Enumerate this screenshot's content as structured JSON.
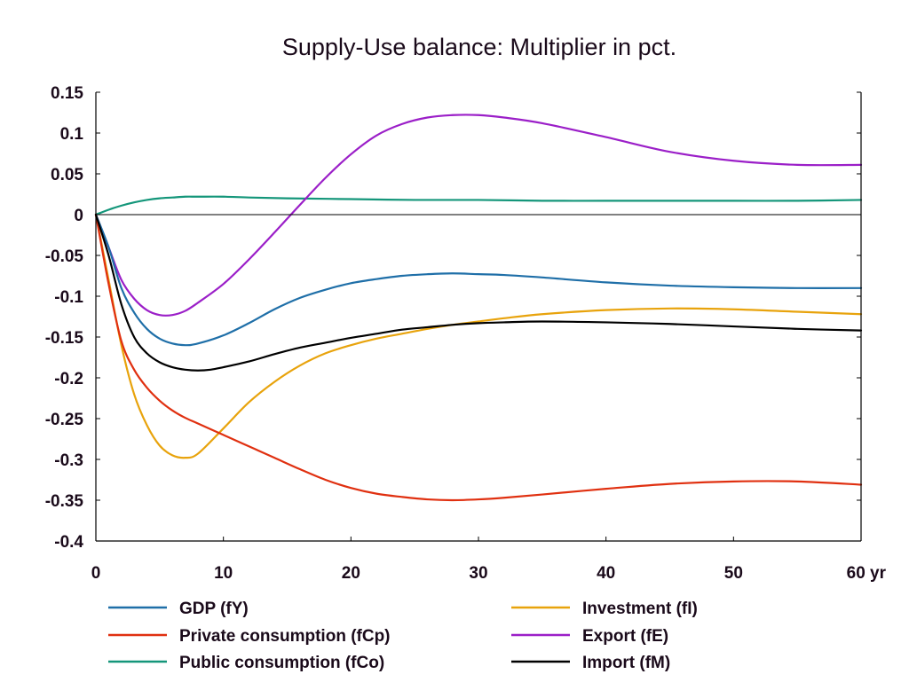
{
  "chart_data": {
    "type": "line",
    "title": "Supply-Use balance: Multiplier in pct.",
    "xlabel": "",
    "ylabel": "",
    "x_unit_label": "yr",
    "xlim": [
      0,
      60
    ],
    "ylim": [
      -0.4,
      0.15
    ],
    "x_ticks": [
      0,
      10,
      20,
      30,
      40,
      50,
      60
    ],
    "x_tick_labels": [
      "0",
      "10",
      "20",
      "30",
      "40",
      "50",
      "60 yr"
    ],
    "y_ticks": [
      0.15,
      0.1,
      0.05,
      0,
      -0.05,
      -0.1,
      -0.15,
      -0.2,
      -0.25,
      -0.3,
      -0.35,
      -0.4
    ],
    "y_tick_labels": [
      "0.15",
      "0.1",
      "0.05",
      "0",
      "-0.05",
      "-0.1",
      "-0.15",
      "-0.2",
      "-0.25",
      "-0.3",
      "-0.35",
      "-0.4"
    ],
    "grid": false,
    "zero_line": true,
    "legend_position": "bottom",
    "series": [
      {
        "name": "GDP (fY)",
        "color": "#1f6fa8",
        "points": [
          [
            0,
            0
          ],
          [
            1,
            -0.04
          ],
          [
            2,
            -0.09
          ],
          [
            3,
            -0.12
          ],
          [
            4,
            -0.14
          ],
          [
            5,
            -0.152
          ],
          [
            6,
            -0.158
          ],
          [
            7,
            -0.16
          ],
          [
            8,
            -0.158
          ],
          [
            10,
            -0.148
          ],
          [
            12,
            -0.133
          ],
          [
            14,
            -0.116
          ],
          [
            16,
            -0.102
          ],
          [
            18,
            -0.092
          ],
          [
            20,
            -0.084
          ],
          [
            22,
            -0.079
          ],
          [
            24,
            -0.075
          ],
          [
            26,
            -0.073
          ],
          [
            28,
            -0.072
          ],
          [
            30,
            -0.073
          ],
          [
            32,
            -0.074
          ],
          [
            35,
            -0.077
          ],
          [
            40,
            -0.083
          ],
          [
            45,
            -0.087
          ],
          [
            50,
            -0.089
          ],
          [
            55,
            -0.09
          ],
          [
            60,
            -0.09
          ]
        ]
      },
      {
        "name": "Investment (fI)",
        "color": "#e8a30c",
        "points": [
          [
            0,
            0
          ],
          [
            1,
            -0.08
          ],
          [
            2,
            -0.16
          ],
          [
            3,
            -0.22
          ],
          [
            4,
            -0.258
          ],
          [
            5,
            -0.283
          ],
          [
            6,
            -0.295
          ],
          [
            7,
            -0.298
          ],
          [
            8,
            -0.293
          ],
          [
            10,
            -0.262
          ],
          [
            12,
            -0.23
          ],
          [
            14,
            -0.205
          ],
          [
            16,
            -0.185
          ],
          [
            18,
            -0.17
          ],
          [
            20,
            -0.16
          ],
          [
            22,
            -0.152
          ],
          [
            24,
            -0.146
          ],
          [
            26,
            -0.14
          ],
          [
            28,
            -0.135
          ],
          [
            30,
            -0.131
          ],
          [
            32,
            -0.127
          ],
          [
            35,
            -0.122
          ],
          [
            40,
            -0.117
          ],
          [
            45,
            -0.115
          ],
          [
            50,
            -0.116
          ],
          [
            55,
            -0.119
          ],
          [
            60,
            -0.122
          ]
        ]
      },
      {
        "name": "Private consumption (fCp)",
        "color": "#e03010",
        "points": [
          [
            0,
            0
          ],
          [
            1,
            -0.085
          ],
          [
            2,
            -0.155
          ],
          [
            3,
            -0.19
          ],
          [
            4,
            -0.212
          ],
          [
            5,
            -0.228
          ],
          [
            6,
            -0.24
          ],
          [
            7,
            -0.249
          ],
          [
            8,
            -0.256
          ],
          [
            10,
            -0.27
          ],
          [
            12,
            -0.284
          ],
          [
            14,
            -0.298
          ],
          [
            16,
            -0.312
          ],
          [
            18,
            -0.325
          ],
          [
            20,
            -0.335
          ],
          [
            22,
            -0.342
          ],
          [
            24,
            -0.346
          ],
          [
            26,
            -0.349
          ],
          [
            28,
            -0.35
          ],
          [
            30,
            -0.349
          ],
          [
            32,
            -0.347
          ],
          [
            35,
            -0.343
          ],
          [
            40,
            -0.336
          ],
          [
            45,
            -0.33
          ],
          [
            50,
            -0.327
          ],
          [
            55,
            -0.327
          ],
          [
            60,
            -0.331
          ]
        ]
      },
      {
        "name": "Export (fE)",
        "color": "#9b1fc8",
        "points": [
          [
            0,
            0
          ],
          [
            1,
            -0.04
          ],
          [
            2,
            -0.08
          ],
          [
            3,
            -0.103
          ],
          [
            4,
            -0.117
          ],
          [
            5,
            -0.123
          ],
          [
            6,
            -0.123
          ],
          [
            7,
            -0.118
          ],
          [
            8,
            -0.108
          ],
          [
            10,
            -0.085
          ],
          [
            12,
            -0.055
          ],
          [
            14,
            -0.022
          ],
          [
            16,
            0.012
          ],
          [
            18,
            0.045
          ],
          [
            20,
            0.074
          ],
          [
            22,
            0.097
          ],
          [
            24,
            0.111
          ],
          [
            26,
            0.119
          ],
          [
            28,
            0.122
          ],
          [
            30,
            0.122
          ],
          [
            32,
            0.119
          ],
          [
            35,
            0.112
          ],
          [
            40,
            0.095
          ],
          [
            45,
            0.077
          ],
          [
            50,
            0.066
          ],
          [
            55,
            0.061
          ],
          [
            60,
            0.061
          ]
        ]
      },
      {
        "name": "Public consumption (fCo)",
        "color": "#14967a",
        "points": [
          [
            0,
            0
          ],
          [
            1,
            0.006
          ],
          [
            2,
            0.011
          ],
          [
            3,
            0.015
          ],
          [
            4,
            0.018
          ],
          [
            5,
            0.02
          ],
          [
            6,
            0.021
          ],
          [
            7,
            0.022
          ],
          [
            8,
            0.022
          ],
          [
            10,
            0.022
          ],
          [
            12,
            0.021
          ],
          [
            15,
            0.02
          ],
          [
            20,
            0.019
          ],
          [
            25,
            0.018
          ],
          [
            30,
            0.018
          ],
          [
            35,
            0.017
          ],
          [
            40,
            0.017
          ],
          [
            45,
            0.017
          ],
          [
            50,
            0.017
          ],
          [
            55,
            0.017
          ],
          [
            60,
            0.018
          ]
        ]
      },
      {
        "name": "Import (fM)",
        "color": "#000000",
        "points": [
          [
            0,
            0
          ],
          [
            1,
            -0.05
          ],
          [
            2,
            -0.11
          ],
          [
            3,
            -0.15
          ],
          [
            4,
            -0.17
          ],
          [
            5,
            -0.181
          ],
          [
            6,
            -0.187
          ],
          [
            7,
            -0.19
          ],
          [
            8,
            -0.191
          ],
          [
            9,
            -0.19
          ],
          [
            10,
            -0.187
          ],
          [
            12,
            -0.18
          ],
          [
            14,
            -0.171
          ],
          [
            16,
            -0.163
          ],
          [
            18,
            -0.157
          ],
          [
            20,
            -0.151
          ],
          [
            22,
            -0.146
          ],
          [
            24,
            -0.141
          ],
          [
            26,
            -0.138
          ],
          [
            28,
            -0.135
          ],
          [
            30,
            -0.133
          ],
          [
            32,
            -0.132
          ],
          [
            35,
            -0.131
          ],
          [
            40,
            -0.132
          ],
          [
            45,
            -0.134
          ],
          [
            50,
            -0.137
          ],
          [
            55,
            -0.14
          ],
          [
            60,
            -0.142
          ]
        ]
      }
    ],
    "legend_order": [
      "GDP (fY)",
      "Investment (fI)",
      "Private consumption (fCp)",
      "Export (fE)",
      "Public consumption (fCo)",
      "Import (fM)"
    ]
  }
}
